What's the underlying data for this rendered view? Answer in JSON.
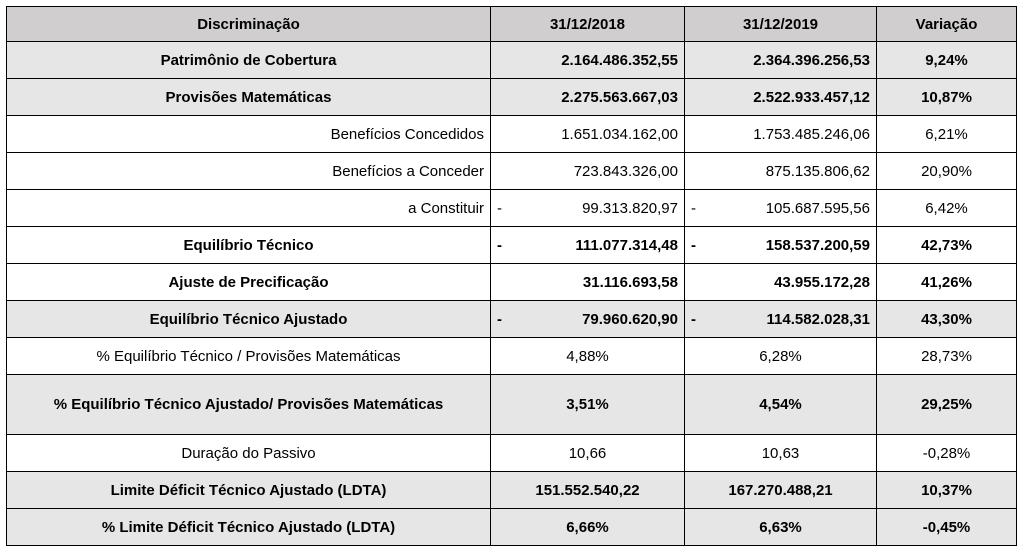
{
  "table": {
    "header": [
      "Discriminação",
      "31/12/2018",
      "31/12/2019",
      "Variação"
    ],
    "rows": [
      {
        "label": "Patrimônio de Cobertura",
        "cells": [
          "2.164.486.352,55",
          "2.364.396.256,53"
        ],
        "variation": "9,24%"
      },
      {
        "label": "Provisões Matemáticas",
        "cells": [
          "2.275.563.667,03",
          "2.522.933.457,12"
        ],
        "variation": "10,87%"
      },
      {
        "label": "Benefícios Concedidos",
        "cells": [
          "1.651.034.162,00",
          "1.753.485.246,06"
        ],
        "variation": "6,21%"
      },
      {
        "label": "Benefícios a Conceder",
        "cells": [
          "723.843.326,00",
          "875.135.806,62"
        ],
        "variation": "20,90%"
      },
      {
        "label": "a Constituir",
        "cells": [
          {
            "sign": "-",
            "amount": "99.313.820,97"
          },
          {
            "sign": "-",
            "amount": "105.687.595,56"
          }
        ],
        "variation": "6,42%"
      },
      {
        "label": "Equilíbrio Técnico",
        "cells": [
          {
            "sign": "-",
            "amount": "111.077.314,48"
          },
          {
            "sign": "-",
            "amount": "158.537.200,59"
          }
        ],
        "variation": "42,73%"
      },
      {
        "label": "Ajuste de Precificação",
        "cells": [
          "31.116.693,58",
          "43.955.172,28"
        ],
        "variation": "41,26%"
      },
      {
        "label": "Equilíbrio Técnico Ajustado",
        "cells": [
          {
            "sign": "-",
            "amount": "79.960.620,90"
          },
          {
            "sign": "-",
            "amount": "114.582.028,31"
          }
        ],
        "variation": "43,30%"
      },
      {
        "label": "% Equilíbrio Técnico / Provisões Matemáticas",
        "cells": [
          "4,88%",
          "6,28%"
        ],
        "variation": "28,73%"
      },
      {
        "label": "% Equilíbrio Técnico Ajustado/ Provisões Matemáticas",
        "cells": [
          "3,51%",
          "4,54%"
        ],
        "variation": "29,25%"
      },
      {
        "label": "Duração do Passivo",
        "cells": [
          "10,66",
          "10,63"
        ],
        "variation": "-0,28%"
      },
      {
        "label": "Limite Déficit Técnico Ajustado (LDTA)",
        "cells": [
          "151.552.540,22",
          "167.270.488,21"
        ],
        "variation": "10,37%"
      },
      {
        "label": "% Limite Déficit Técnico Ajustado (LDTA)",
        "cells": [
          "6,66%",
          "6,63%"
        ],
        "variation": "-0,45%"
      }
    ]
  }
}
